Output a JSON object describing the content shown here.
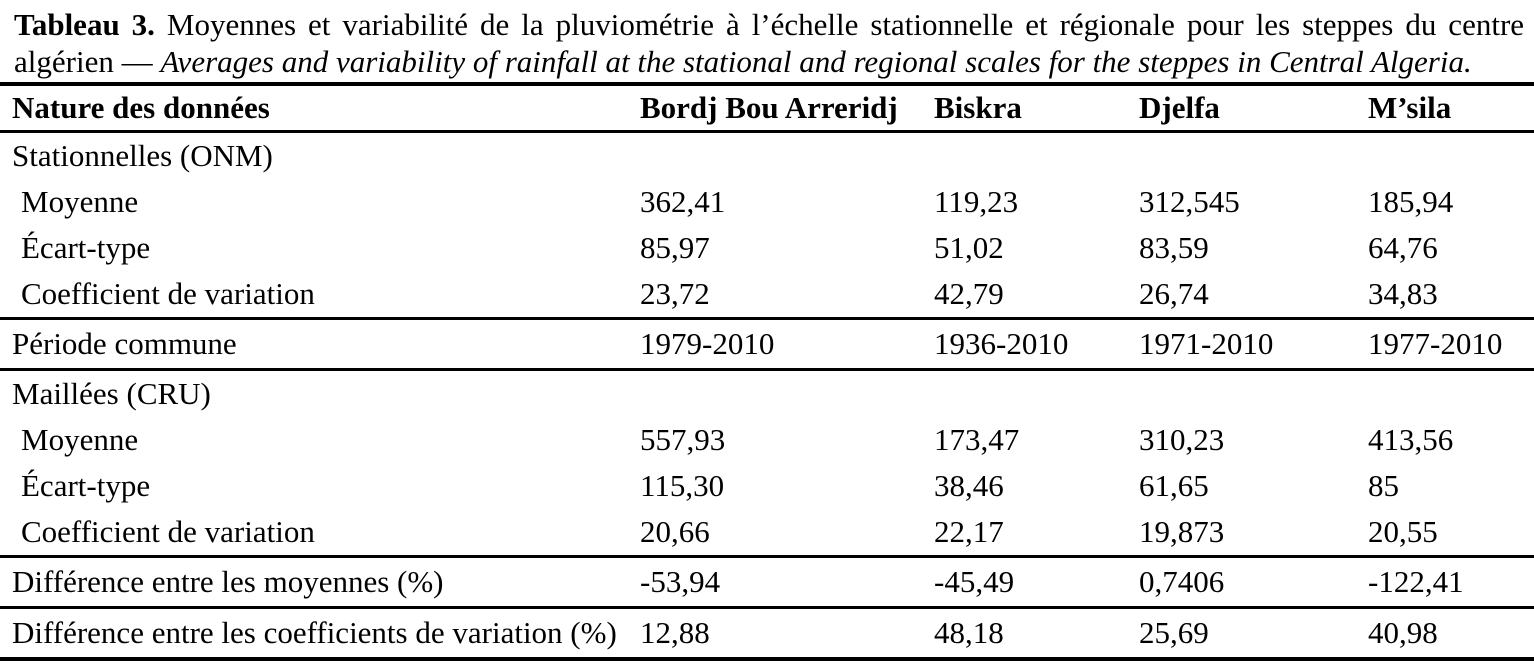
{
  "caption": {
    "label": "Tableau 3.",
    "text_fr": "Moyennes et variabilité de la pluviométrie à l’échelle stationnelle et régionale pour les steppes du centre algérien",
    "separator": "—",
    "text_en": "Averages and variability of rainfall at the stational and regional scales for the steppes in Central Algeria."
  },
  "table": {
    "columns": {
      "label": "Nature des données",
      "col1": "Bordj Bou Arreridj",
      "col2": "Biskra",
      "col3": "Djelfa",
      "col4": "M’sila"
    },
    "rows": [
      {
        "label": "Stationnelles (ONM)",
        "type": "section",
        "values": [
          "",
          "",
          "",
          ""
        ]
      },
      {
        "label": "Moyenne",
        "type": "data",
        "values": [
          "362,41",
          "119,23",
          "312,545",
          "185,94"
        ]
      },
      {
        "label": "Écart-type",
        "type": "data",
        "values": [
          "85,97",
          "51,02",
          "83,59",
          "64,76"
        ]
      },
      {
        "label": "Coefficient de variation",
        "type": "data",
        "values": [
          "23,72",
          "42,79",
          "26,74",
          "34,83"
        ]
      },
      {
        "label": "Période commune",
        "type": "single",
        "values": [
          "1979-2010",
          "1936-2010",
          "1971-2010",
          "1977-2010"
        ]
      },
      {
        "label": "Maillées (CRU)",
        "type": "section",
        "values": [
          "",
          "",
          "",
          ""
        ]
      },
      {
        "label": "Moyenne",
        "type": "data",
        "values": [
          "557,93",
          "173,47",
          "310,23",
          "413,56"
        ]
      },
      {
        "label": "Écart-type",
        "type": "data",
        "values": [
          "115,30",
          "38,46",
          "61,65",
          "85"
        ]
      },
      {
        "label": "Coefficient de variation",
        "type": "data",
        "values": [
          "20,66",
          "22,17",
          "19,873",
          "20,55"
        ]
      },
      {
        "label": "Différence entre les moyennes (%)",
        "type": "single",
        "values": [
          "-53,94",
          "-45,49",
          "0,7406",
          "-122,41"
        ]
      },
      {
        "label": "Différence entre les coefficients de variation (%)",
        "type": "single",
        "values": [
          "12,88",
          "48,18",
          "25,69",
          "40,98"
        ]
      }
    ]
  }
}
